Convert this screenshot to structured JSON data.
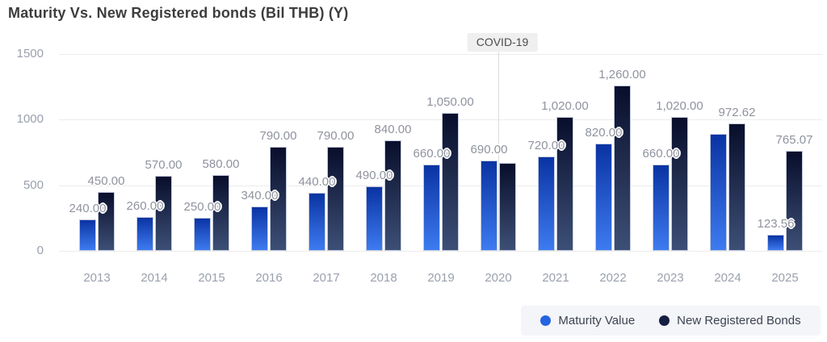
{
  "title": "Maturity Vs. New Registered bonds (Bil THB) (Y)",
  "colors": {
    "maturity_bar_top": "#0a33a3",
    "maturity_bar_bottom": "#3d7bf0",
    "registered_bar_top": "#080e2b",
    "registered_bar_bottom": "#3d4f76",
    "bar_border": "#c3cbdf",
    "gridline": "#ececec",
    "axis_text": "#9aa0ad",
    "value_label_text": "#8f939e",
    "annotation_bg": "#efefef",
    "annotation_text": "#4c4c4c",
    "legend_bg": "#f4f5f8",
    "legend_text": "#3c4352"
  },
  "chart_data": {
    "type": "bar",
    "title": "Maturity Vs. New Registered bonds (Bil THB) (Y)",
    "categories": [
      "2013",
      "2014",
      "2015",
      "2016",
      "2017",
      "2018",
      "2019",
      "2020",
      "2021",
      "2022",
      "2023",
      "2024",
      "2025"
    ],
    "series": [
      {
        "name": "Maturity Value",
        "values": [
          240,
          260,
          250,
          340,
          440,
          490,
          660,
          690,
          720,
          820,
          660,
          890,
          123.56
        ],
        "labels": [
          "240.00",
          "260.00",
          "250.00",
          "340.00",
          "440.00",
          "490.00",
          "660.00",
          "690.00",
          "720.00",
          "820.00",
          "660.00",
          null,
          "123.56"
        ]
      },
      {
        "name": "New Registered Bonds",
        "values": [
          450,
          570,
          580,
          790,
          790,
          840,
          1050,
          670,
          1020,
          1260,
          1020,
          972.62,
          765.07
        ],
        "labels": [
          "450.00",
          "570.00",
          "580.00",
          "790.00",
          "790.00",
          "840.00",
          "1,050.00",
          null,
          "1,020.00",
          "1,260.00",
          "1,020.00",
          "972.62",
          "765.07"
        ]
      }
    ],
    "xlabel": "",
    "ylabel": "",
    "ylim": [
      0,
      1500
    ],
    "yticks": [
      "0",
      "500",
      "1000",
      "1500"
    ],
    "grid": "horizontal",
    "legend_position": "bottom-right",
    "annotation": {
      "label": "COVID-19",
      "category": "2020"
    }
  },
  "legend": {
    "items": [
      {
        "label": "Maturity Value",
        "color": "#2663e0"
      },
      {
        "label": "New Registered Bonds",
        "color": "#141f42"
      }
    ]
  }
}
